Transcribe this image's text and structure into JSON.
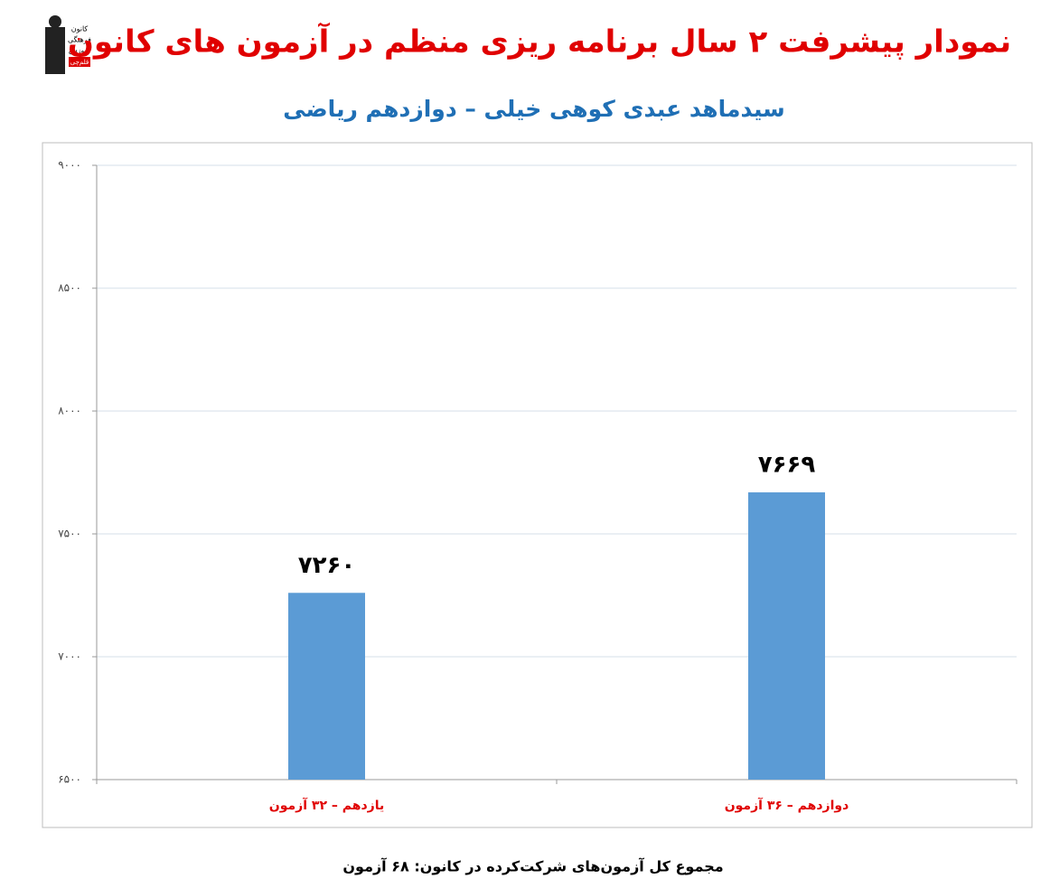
{
  "logo": [
    "کانون",
    "فرهنگی",
    "آموزش",
    "قلم‌چی"
  ],
  "chart_data": {
    "type": "bar",
    "title": "نمودار پیشرفت ۲ سال برنامه ریزی منظم در آزمون های کانون",
    "subtitle": "سیدماهد عبدی کوهی خیلی – دوازدهم ریاضی",
    "categories": [
      "یازدهم – ۳۲ آزمون",
      "دوازدهم – ۳۶ آزمون"
    ],
    "values": [
      7260,
      7669
    ],
    "value_labels": [
      "۷۲۶۰",
      "۷۶۶۹"
    ],
    "color": "#5b9bd5",
    "ylim": [
      6500,
      9000
    ],
    "yticks": [
      {
        "value": 6500,
        "label": "۶۵۰۰"
      },
      {
        "value": 7000,
        "label": "۷۰۰۰"
      },
      {
        "value": 7500,
        "label": "۷۵۰۰"
      },
      {
        "value": 8000,
        "label": "۸۰۰۰"
      },
      {
        "value": 8500,
        "label": "۸۵۰۰"
      },
      {
        "value": 9000,
        "label": "۹۰۰۰"
      }
    ],
    "grid": true,
    "note": "مجموع کل آزمون‌های شرکت‌کرده در کانون: ۶۸ آزمون"
  }
}
